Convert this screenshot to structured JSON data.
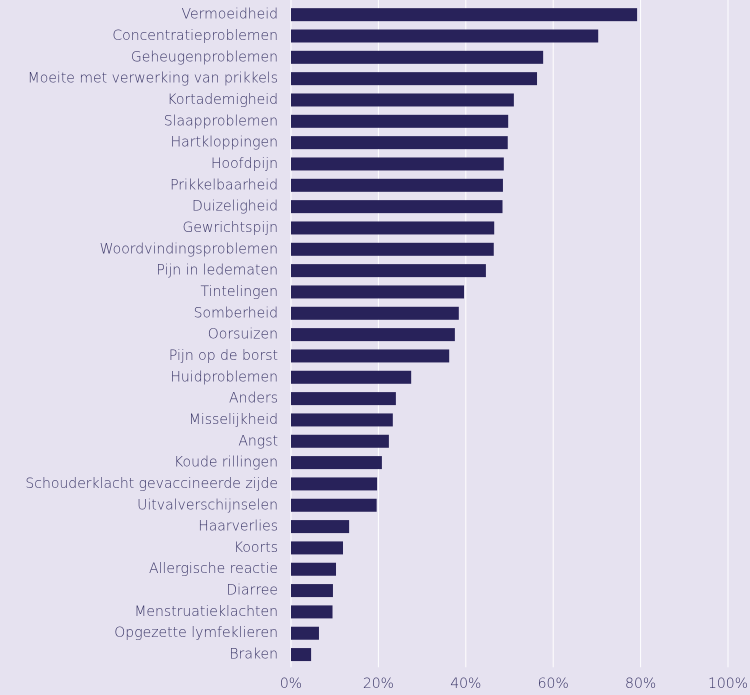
{
  "chart_data": {
    "type": "bar",
    "orientation": "horizontal",
    "color": "#28225a",
    "grid": true,
    "categories": [
      "Vermoeidheid",
      "Concentratieproblemen",
      "Geheugenproblemen",
      "Moeite met verwerking van prikkels",
      "Kortademigheid",
      "Slaapproblemen",
      "Hartkloppingen",
      "Hoofdpijn",
      "Prikkelbaarheid",
      "Duizeligheid",
      "Gewrichtspijn",
      "Woordvindingsproblemen",
      "Pijn in ledematen",
      "Tintelingen",
      "Somberheid",
      "Oorsuizen",
      "Pijn op de borst",
      "Huidproblemen",
      "Anders",
      "Misselijkheid",
      "Angst",
      "Koude rillingen",
      "Schouderklacht gevaccineerde zijde",
      "Uitvalverschijnselen",
      "Haarverlies",
      "Koorts",
      "Allergische reactie",
      "Diarree",
      "Menstruatieklachten",
      "Opgezette lymfeklieren",
      "Braken"
    ],
    "values": [
      79.2,
      70.3,
      57.7,
      56.3,
      51,
      49.7,
      49.6,
      48.7,
      48.5,
      48.4,
      46.5,
      46.4,
      44.6,
      39.6,
      38.4,
      37.5,
      36.2,
      27.5,
      24,
      23.3,
      22.4,
      20.8,
      19.7,
      19.6,
      13.3,
      11.9,
      10.3,
      9.6,
      9.5,
      6.4,
      4.6
    ],
    "xlim": [
      0,
      100
    ],
    "xticks": [
      {
        "value": 0,
        "label": "0%"
      },
      {
        "value": 20,
        "label": "20%"
      },
      {
        "value": 40,
        "label": "40%"
      },
      {
        "value": 60,
        "label": "60%"
      },
      {
        "value": 80,
        "label": "80%"
      },
      {
        "value": 100,
        "label": "100%"
      }
    ]
  }
}
